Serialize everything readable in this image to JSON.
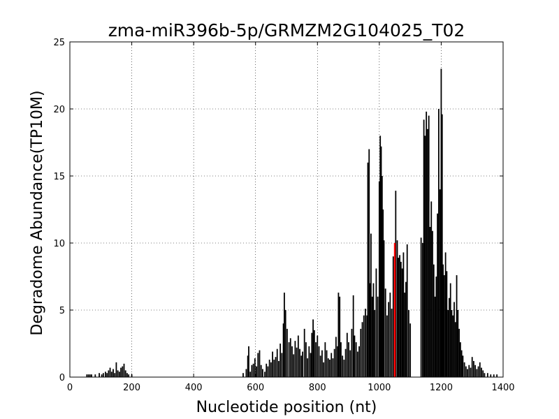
{
  "chart_data": {
    "type": "bar",
    "title": "zma-miR396b-5p/GRMZM2G104025_T02",
    "xlabel": "Nucleotide position (nt)",
    "ylabel": "Degradome Abundance(TP10M)",
    "xlim": [
      0,
      1400
    ],
    "ylim": [
      0,
      25
    ],
    "xticks": [
      0,
      200,
      400,
      600,
      800,
      1000,
      1200,
      1400
    ],
    "yticks": [
      0,
      5,
      10,
      15,
      20,
      25
    ],
    "grid": true,
    "colors": {
      "bars": "#000000",
      "highlight": "#ff0000"
    },
    "series": [
      {
        "values": [
          [
            55,
            0.2
          ],
          [
            60,
            0.2
          ],
          [
            65,
            0.2
          ],
          [
            70,
            0.2
          ],
          [
            82,
            0.2
          ],
          [
            95,
            0.3
          ],
          [
            103,
            0.2
          ],
          [
            108,
            0.3
          ],
          [
            115,
            0.4
          ],
          [
            120,
            0.3
          ],
          [
            125,
            0.5
          ],
          [
            130,
            0.7
          ],
          [
            135,
            0.4
          ],
          [
            140,
            0.6
          ],
          [
            145,
            0.3
          ],
          [
            150,
            1.1
          ],
          [
            155,
            0.5
          ],
          [
            160,
            0.4
          ],
          [
            165,
            0.7
          ],
          [
            170,
            0.8
          ],
          [
            175,
            1.0
          ],
          [
            180,
            0.5
          ],
          [
            185,
            0.3
          ],
          [
            190,
            0.2
          ],
          [
            200,
            0.2
          ],
          [
            560,
            0.3
          ],
          [
            570,
            0.6
          ],
          [
            575,
            1.6
          ],
          [
            578,
            2.3
          ],
          [
            583,
            0.4
          ],
          [
            588,
            0.9
          ],
          [
            593,
            1.0
          ],
          [
            598,
            1.4
          ],
          [
            603,
            0.8
          ],
          [
            608,
            1.8
          ],
          [
            613,
            2.0
          ],
          [
            618,
            0.9
          ],
          [
            623,
            0.6
          ],
          [
            630,
            0.4
          ],
          [
            635,
            1.0
          ],
          [
            640,
            0.8
          ],
          [
            645,
            1.3
          ],
          [
            650,
            1.1
          ],
          [
            655,
            1.9
          ],
          [
            660,
            1.3
          ],
          [
            665,
            1.5
          ],
          [
            670,
            2.1
          ],
          [
            675,
            1.2
          ],
          [
            680,
            2.5
          ],
          [
            685,
            1.8
          ],
          [
            690,
            4.0
          ],
          [
            693,
            6.3
          ],
          [
            697,
            5.0
          ],
          [
            702,
            3.6
          ],
          [
            708,
            2.6
          ],
          [
            713,
            2.9
          ],
          [
            718,
            2.3
          ],
          [
            723,
            1.7
          ],
          [
            728,
            2.7
          ],
          [
            733,
            2.2
          ],
          [
            738,
            3.1
          ],
          [
            743,
            2.1
          ],
          [
            748,
            1.6
          ],
          [
            752,
            1.9
          ],
          [
            758,
            3.6
          ],
          [
            763,
            2.6
          ],
          [
            768,
            1.4
          ],
          [
            773,
            2.3
          ],
          [
            778,
            1.8
          ],
          [
            782,
            3.3
          ],
          [
            786,
            4.3
          ],
          [
            790,
            3.5
          ],
          [
            795,
            2.6
          ],
          [
            800,
            3.1
          ],
          [
            805,
            2.3
          ],
          [
            810,
            1.6
          ],
          [
            815,
            2.0
          ],
          [
            820,
            1.1
          ],
          [
            825,
            2.6
          ],
          [
            830,
            2.0
          ],
          [
            835,
            1.4
          ],
          [
            840,
            1.3
          ],
          [
            845,
            1.8
          ],
          [
            850,
            1.4
          ],
          [
            855,
            2.1
          ],
          [
            860,
            3.0
          ],
          [
            865,
            2.3
          ],
          [
            868,
            6.3
          ],
          [
            872,
            6.0
          ],
          [
            876,
            2.6
          ],
          [
            881,
            1.6
          ],
          [
            886,
            1.3
          ],
          [
            891,
            2.1
          ],
          [
            896,
            3.3
          ],
          [
            901,
            2.6
          ],
          [
            906,
            2.0
          ],
          [
            911,
            3.6
          ],
          [
            916,
            6.1
          ],
          [
            920,
            3.1
          ],
          [
            925,
            2.6
          ],
          [
            930,
            1.9
          ],
          [
            935,
            2.3
          ],
          [
            940,
            3.6
          ],
          [
            945,
            4.1
          ],
          [
            950,
            4.6
          ],
          [
            955,
            5.1
          ],
          [
            960,
            4.6
          ],
          [
            963,
            16.0
          ],
          [
            967,
            17.0
          ],
          [
            970,
            7.0
          ],
          [
            973,
            10.7
          ],
          [
            977,
            6.0
          ],
          [
            981,
            7.0
          ],
          [
            985,
            5.0
          ],
          [
            990,
            8.1
          ],
          [
            995,
            6.0
          ],
          [
            1000,
            14.6
          ],
          [
            1003,
            18.0
          ],
          [
            1006,
            17.2
          ],
          [
            1009,
            15.0
          ],
          [
            1012,
            12.5
          ],
          [
            1015,
            10.2
          ],
          [
            1020,
            6.6
          ],
          [
            1025,
            4.6
          ],
          [
            1030,
            5.6
          ],
          [
            1035,
            6.3
          ],
          [
            1040,
            5.1
          ],
          [
            1045,
            9.0
          ],
          [
            1053,
            13.9
          ],
          [
            1058,
            10.2
          ],
          [
            1062,
            8.9
          ],
          [
            1066,
            9.1
          ],
          [
            1070,
            8.6
          ],
          [
            1074,
            8.1
          ],
          [
            1078,
            9.3
          ],
          [
            1082,
            6.3
          ],
          [
            1086,
            7.1
          ],
          [
            1090,
            9.9
          ],
          [
            1095,
            5.0
          ],
          [
            1100,
            4.0
          ],
          [
            1135,
            10.4
          ],
          [
            1140,
            10.0
          ],
          [
            1144,
            19.2
          ],
          [
            1148,
            18.0
          ],
          [
            1152,
            19.8
          ],
          [
            1156,
            18.5
          ],
          [
            1160,
            19.5
          ],
          [
            1164,
            11.2
          ],
          [
            1168,
            13.1
          ],
          [
            1172,
            10.9
          ],
          [
            1176,
            8.4
          ],
          [
            1180,
            6.0
          ],
          [
            1184,
            7.5
          ],
          [
            1188,
            12.2
          ],
          [
            1192,
            20.0
          ],
          [
            1196,
            14.0
          ],
          [
            1200,
            23.0
          ],
          [
            1203,
            19.6
          ],
          [
            1206,
            8.4
          ],
          [
            1210,
            7.6
          ],
          [
            1214,
            9.3
          ],
          [
            1218,
            7.9
          ],
          [
            1222,
            5.0
          ],
          [
            1226,
            5.9
          ],
          [
            1230,
            7.0
          ],
          [
            1234,
            5.0
          ],
          [
            1238,
            4.6
          ],
          [
            1242,
            5.6
          ],
          [
            1246,
            4.1
          ],
          [
            1250,
            7.6
          ],
          [
            1254,
            5.0
          ],
          [
            1258,
            3.6
          ],
          [
            1262,
            2.6
          ],
          [
            1266,
            2.0
          ],
          [
            1270,
            1.6
          ],
          [
            1275,
            1.1
          ],
          [
            1280,
            0.8
          ],
          [
            1285,
            0.6
          ],
          [
            1290,
            0.9
          ],
          [
            1295,
            0.7
          ],
          [
            1300,
            1.5
          ],
          [
            1305,
            1.2
          ],
          [
            1310,
            0.9
          ],
          [
            1315,
            0.6
          ],
          [
            1320,
            0.8
          ],
          [
            1325,
            1.1
          ],
          [
            1330,
            0.7
          ],
          [
            1335,
            0.5
          ],
          [
            1340,
            0.3
          ],
          [
            1350,
            0.3
          ],
          [
            1360,
            0.2
          ],
          [
            1370,
            0.2
          ],
          [
            1380,
            0.2
          ]
        ]
      }
    ],
    "highlight": {
      "x": 1050,
      "y": 10.0
    }
  }
}
